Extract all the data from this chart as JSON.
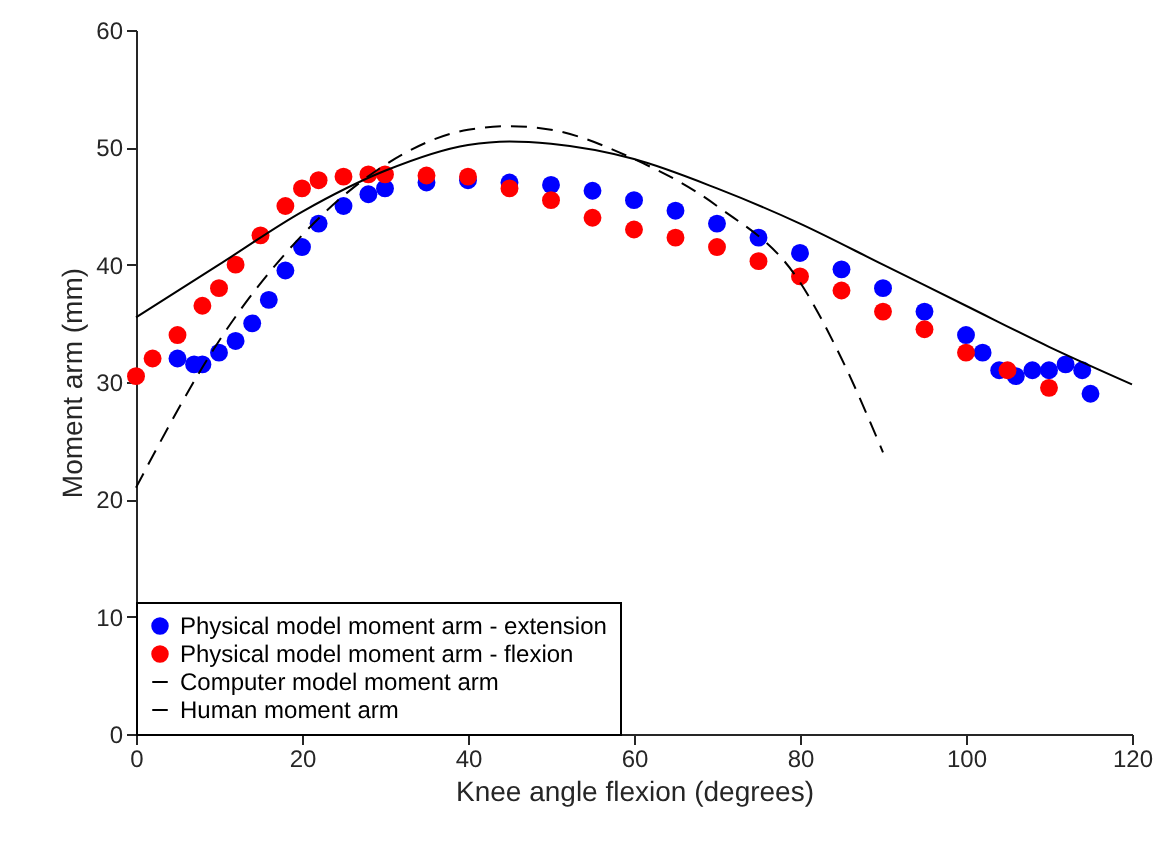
{
  "chart_data": {
    "type": "scatter",
    "xlabel": "Knee angle flexion (degrees)",
    "ylabel": "Moment arm (mm)",
    "xlim": [
      0,
      120
    ],
    "ylim": [
      0,
      60
    ],
    "xticks": [
      0,
      20,
      40,
      60,
      80,
      100,
      120
    ],
    "yticks": [
      0,
      10,
      20,
      30,
      40,
      50,
      60
    ],
    "grid": false,
    "legend": "bottom left",
    "series": [
      {
        "name": "Physical model moment arm - extension",
        "color": "#0000ff",
        "marker": "circle",
        "x": [
          5,
          7,
          8,
          10,
          12,
          14,
          16,
          18,
          20,
          22,
          25,
          28,
          30,
          35,
          40,
          45,
          50,
          55,
          60,
          65,
          70,
          75,
          80,
          85,
          90,
          95,
          100,
          102,
          104,
          106,
          108,
          110,
          112,
          114,
          115
        ],
        "values": [
          32,
          31.5,
          31.5,
          32.5,
          33.5,
          35,
          37,
          39.5,
          41.5,
          43.5,
          45,
          46,
          46.5,
          47,
          47.2,
          47,
          46.8,
          46.3,
          45.5,
          44.6,
          43.5,
          42.3,
          41,
          39.6,
          38,
          36,
          34,
          32.5,
          31,
          30.5,
          31,
          31,
          31.5,
          31,
          29
        ]
      },
      {
        "name": "Physical model moment arm - flexion",
        "color": "#ff0000",
        "marker": "circle",
        "x": [
          0,
          2,
          5,
          8,
          10,
          12,
          15,
          18,
          20,
          22,
          25,
          28,
          30,
          35,
          40,
          45,
          50,
          55,
          60,
          65,
          70,
          75,
          80,
          85,
          90,
          95,
          100,
          105,
          110
        ],
        "values": [
          30.5,
          32,
          34,
          36.5,
          38,
          40,
          42.5,
          45,
          46.5,
          47.2,
          47.5,
          47.7,
          47.7,
          47.6,
          47.5,
          46.5,
          45.5,
          44,
          43,
          42.3,
          41.5,
          40.3,
          39,
          37.8,
          36,
          34.5,
          32.5,
          31,
          29.5
        ]
      },
      {
        "name": "Computer model moment arm",
        "color": "#000000",
        "type": "line",
        "marker": "none",
        "line_style": "solid",
        "x": [
          0,
          10,
          20,
          30,
          40,
          45,
          50,
          60,
          70,
          80,
          90,
          100,
          110,
          120
        ],
        "values": [
          35.5,
          40,
          44.5,
          48,
          50.2,
          50.5,
          50.3,
          49,
          46.5,
          43.5,
          40,
          36.5,
          33,
          29.8
        ]
      },
      {
        "name": "Human moment arm",
        "color": "#000000",
        "type": "line",
        "marker": "none",
        "line_style": "dashed",
        "x": [
          0,
          10,
          20,
          30,
          40,
          45,
          50,
          60,
          70,
          80,
          85,
          90
        ],
        "values": [
          21,
          33.5,
          42.5,
          48.5,
          51.5,
          51.8,
          51.5,
          49,
          45,
          38.5,
          32,
          24
        ]
      }
    ]
  }
}
